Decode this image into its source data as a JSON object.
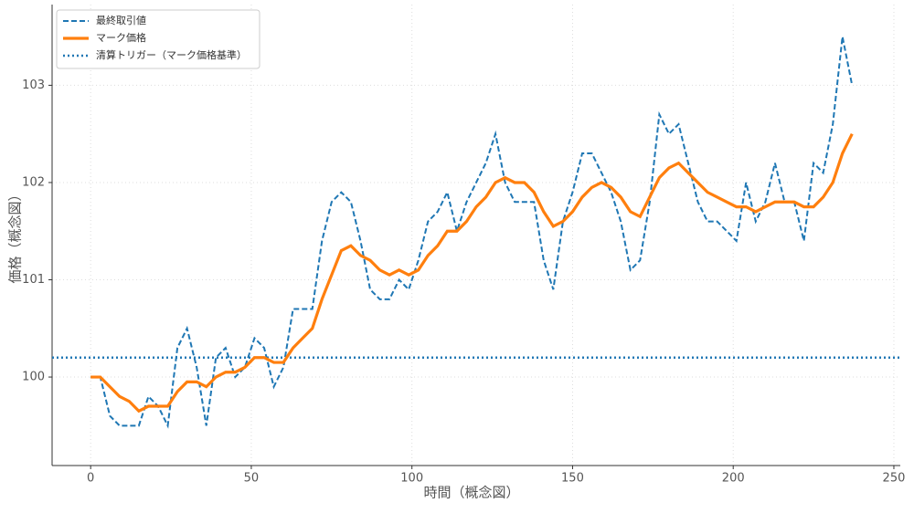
{
  "chart_data": {
    "type": "line",
    "x_label": "時間（概念図）",
    "y_label": "価格（概念図）",
    "x": [
      0,
      3,
      6,
      9,
      12,
      15,
      18,
      21,
      24,
      27,
      30,
      33,
      36,
      39,
      42,
      45,
      48,
      51,
      54,
      57,
      60,
      63,
      66,
      69,
      72,
      75,
      78,
      81,
      84,
      87,
      90,
      93,
      96,
      99,
      102,
      105,
      108,
      111,
      114,
      117,
      120,
      123,
      126,
      129,
      132,
      135,
      138,
      141,
      144,
      147,
      150,
      153,
      156,
      159,
      162,
      165,
      168,
      171,
      174,
      177,
      180,
      183,
      186,
      189,
      192,
      195,
      198,
      201,
      204,
      207,
      210,
      213,
      216,
      219,
      222,
      225,
      228,
      231,
      234,
      237
    ],
    "series": [
      {
        "name": "最終取引値",
        "color": "#1f77b4",
        "style": "dashed",
        "values": [
          100.0,
          100.0,
          99.6,
          99.5,
          99.5,
          99.5,
          99.8,
          99.7,
          99.5,
          100.3,
          100.5,
          100.1,
          99.5,
          100.2,
          100.3,
          100.0,
          100.1,
          100.4,
          100.3,
          99.9,
          100.1,
          100.7,
          100.7,
          100.7,
          101.4,
          101.8,
          101.9,
          101.8,
          101.4,
          100.9,
          100.8,
          100.8,
          101.0,
          100.9,
          101.2,
          101.6,
          101.7,
          101.9,
          101.5,
          101.8,
          102.0,
          102.2,
          102.5,
          102.0,
          101.8,
          101.8,
          101.8,
          101.2,
          100.9,
          101.6,
          101.9,
          102.3,
          102.3,
          102.1,
          101.9,
          101.6,
          101.1,
          101.2,
          101.8,
          102.7,
          102.5,
          102.6,
          102.2,
          101.8,
          101.6,
          101.6,
          101.5,
          101.4,
          102.0,
          101.6,
          101.8,
          102.2,
          101.8,
          101.8,
          101.4,
          102.2,
          102.1,
          102.6,
          103.5,
          103.0
        ]
      },
      {
        "name": "マーク価格",
        "color": "#ff7f0e",
        "style": "solid",
        "values": [
          100.0,
          100.0,
          99.9,
          99.8,
          99.75,
          99.65,
          99.7,
          99.7,
          99.7,
          99.85,
          99.95,
          99.95,
          99.9,
          100.0,
          100.05,
          100.05,
          100.1,
          100.2,
          100.2,
          100.15,
          100.15,
          100.3,
          100.4,
          100.5,
          100.8,
          101.05,
          101.3,
          101.35,
          101.25,
          101.2,
          101.1,
          101.05,
          101.1,
          101.05,
          101.1,
          101.25,
          101.35,
          101.5,
          101.5,
          101.6,
          101.75,
          101.85,
          102.0,
          102.05,
          102.0,
          102.0,
          101.9,
          101.7,
          101.55,
          101.6,
          101.7,
          101.85,
          101.95,
          102.0,
          101.95,
          101.85,
          101.7,
          101.65,
          101.85,
          102.05,
          102.15,
          102.2,
          102.1,
          102.0,
          101.9,
          101.85,
          101.8,
          101.75,
          101.75,
          101.7,
          101.75,
          101.8,
          101.8,
          101.8,
          101.75,
          101.75,
          101.85,
          102.0,
          102.3,
          102.5
        ]
      }
    ],
    "threshold": {
      "name": "清算トリガー（マーク価格基準）",
      "value": 100.2,
      "color": "#1f77b4"
    },
    "xlim": [
      -12,
      252
    ],
    "ylim": [
      99.09,
      103.83
    ],
    "xticks": [
      0,
      50,
      100,
      150,
      200,
      250
    ],
    "yticks": [
      100,
      101,
      102,
      103
    ],
    "grid": true,
    "legend": "upper left"
  }
}
